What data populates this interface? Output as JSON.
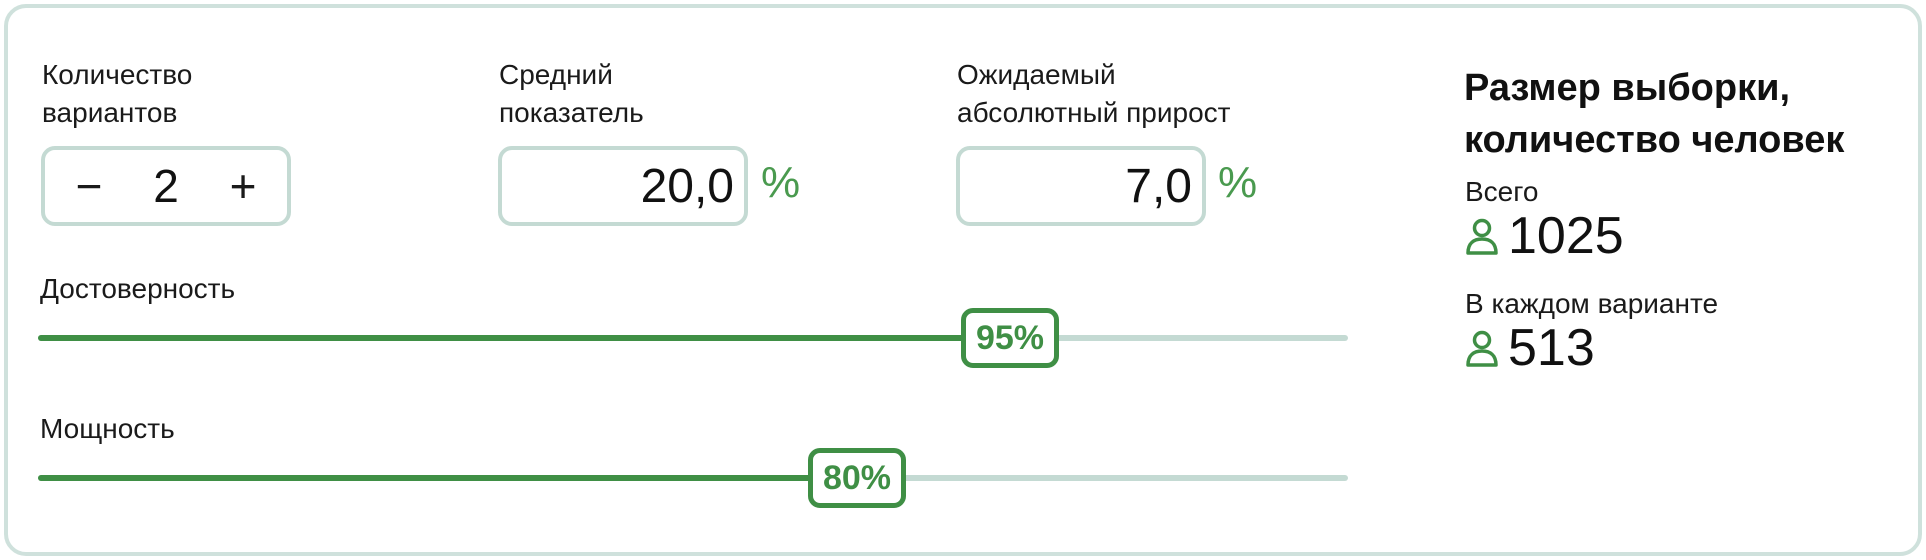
{
  "form": {
    "variants": {
      "label_line1": "Количество",
      "label_line2": "вариантов",
      "value": "2",
      "minus": "−",
      "plus": "+"
    },
    "mean": {
      "label_line1": "Средний",
      "label_line2": "показатель",
      "value": "20,0",
      "unit": "%"
    },
    "growth": {
      "label_line1": "Ожидаемый",
      "label_line2": "абсолютный прирост",
      "value": "7,0",
      "unit": "%"
    },
    "confidence": {
      "label": "Достоверность",
      "value_text": "95%",
      "percent": 95
    },
    "power": {
      "label": "Мощность",
      "value_text": "80%",
      "percent": 80
    }
  },
  "result": {
    "title_line1": "Размер выборки,",
    "title_line2": "количество человек",
    "total_label": "Всего",
    "total_value": "1025",
    "per_variant_label": "В каждом варианте",
    "per_variant_value": "513"
  },
  "colors": {
    "accent": "#3f8f45",
    "border": "#c4dad3",
    "track": "#c4dad3"
  },
  "icons": {
    "person": "person-icon"
  }
}
